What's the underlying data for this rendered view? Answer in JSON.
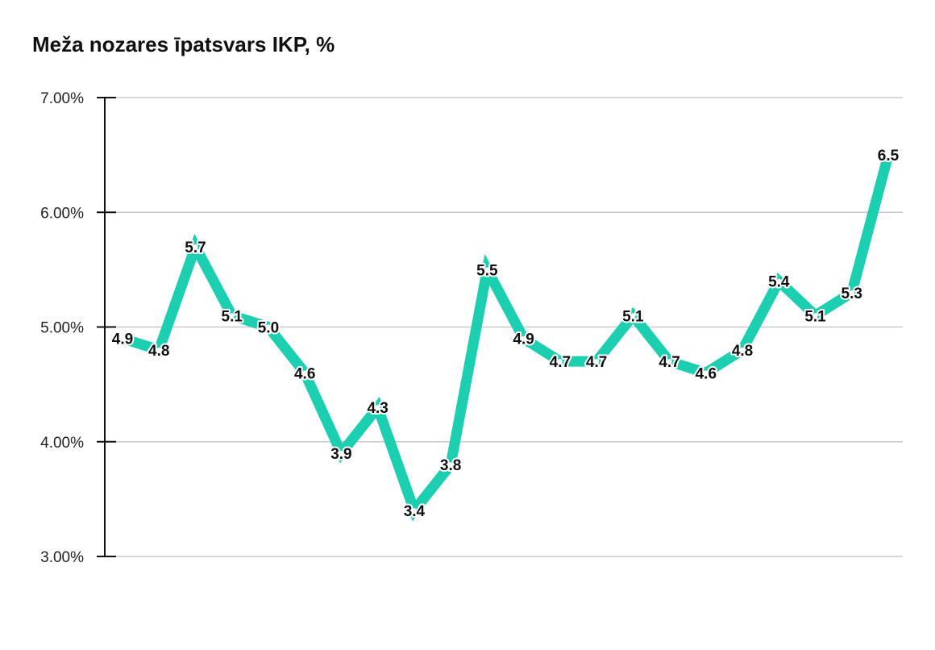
{
  "chart_data": {
    "type": "line",
    "title": "Meža nozares īpatsvars IKP, %",
    "xlabel": "",
    "ylabel": "",
    "ylim": [
      3,
      7
    ],
    "yticks": [
      3,
      4,
      5,
      6,
      7
    ],
    "ytick_labels": [
      "3.00%",
      "4.00%",
      "5.00%",
      "6.00%",
      "7.00%"
    ],
    "grid": true,
    "legend": "none",
    "series": [
      {
        "values": [
          4.9,
          4.8,
          5.7,
          5.1,
          5.0,
          4.6,
          3.9,
          4.3,
          3.4,
          3.8,
          5.5,
          4.9,
          4.7,
          4.7,
          5.1,
          4.7,
          4.6,
          4.8,
          5.4,
          5.1,
          5.3,
          6.5
        ],
        "labels": [
          "4.9",
          "4.8",
          "5.7",
          "5.1",
          "5.0",
          "4.6",
          "3.9",
          "4.3",
          "3.4",
          "3.8",
          "5.5",
          "4.9",
          "4.7",
          "4.7",
          "5.1",
          "4.7",
          "4.6",
          "4.8",
          "5.4",
          "5.1",
          "5.3",
          "6.5"
        ],
        "color": "#1ccfb0"
      }
    ]
  },
  "colors": {
    "line": "#1ccfb0",
    "grid": "#c8c8c8",
    "axis": "#111111"
  }
}
